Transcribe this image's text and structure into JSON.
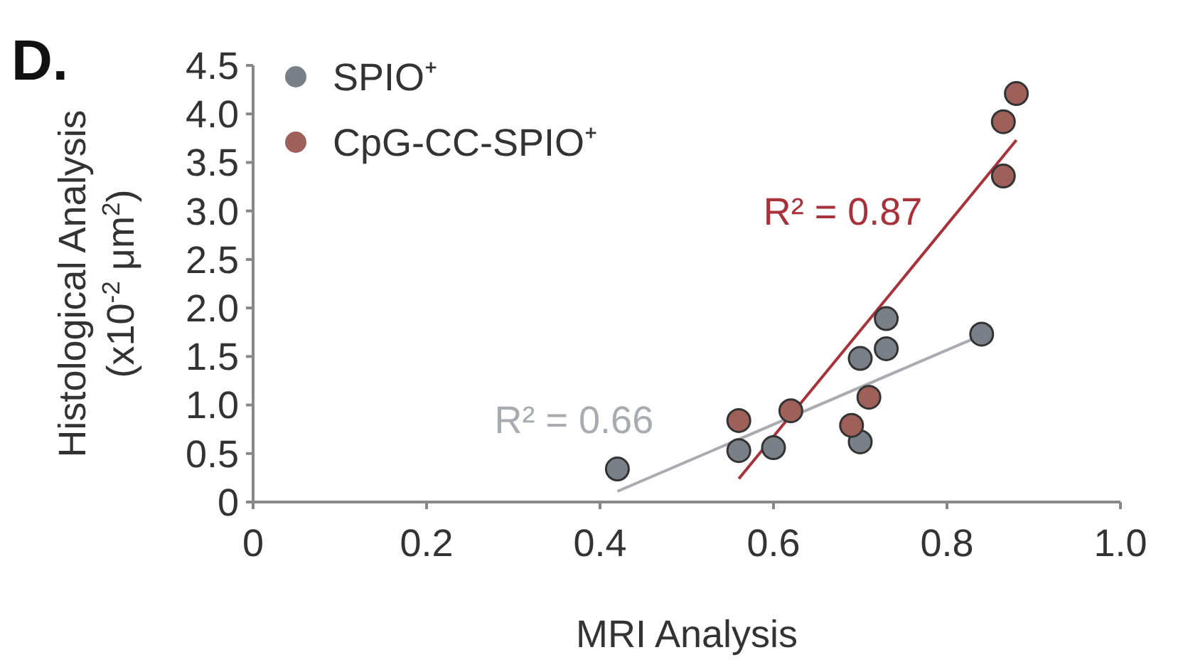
{
  "chart_data": {
    "type": "scatter",
    "title": "D.",
    "xlabel": "MRI Analysis",
    "ylabel": "Histological Analysis\n(x10$^{-2}$ μm$^{2}$)",
    "xlim": [
      0,
      1.0
    ],
    "xticks": [
      0,
      {
        "value": 0.2,
        "label": "0.2"
      },
      {
        "value": 0.4,
        "label": "0.4"
      },
      {
        "value": 0.6,
        "label": "0.6"
      },
      {
        "value": 0.8,
        "label": "0.8"
      },
      {
        "value": 1.0,
        "label": "1.0"
      }
    ],
    "ylim": [
      0,
      4.5
    ],
    "yticks": [
      0,
      {
        "value": 0.5,
        "label": "0.5"
      },
      {
        "value": 1.0,
        "label": "1.0"
      },
      {
        "value": 1.5,
        "label": "1.5"
      },
      {
        "value": 2.0,
        "label": "2.0"
      },
      {
        "value": 2.5,
        "label": "2.5"
      },
      {
        "value": 3.0,
        "label": "3.0"
      },
      {
        "value": 3.5,
        "label": "3.5"
      },
      {
        "value": 4.0,
        "label": "4.0"
      },
      {
        "value": 4.5,
        "label": "4.5"
      }
    ],
    "grid": false,
    "legend": "top left",
    "marker": "circle",
    "series": [
      {
        "name": "SPIO⁺",
        "color": "#7a8088",
        "x": [
          0.42,
          0.56,
          0.6,
          0.7,
          0.7,
          0.73,
          0.73,
          0.84
        ],
        "values": [
          0.34,
          0.53,
          0.56,
          0.62,
          1.48,
          1.58,
          1.89,
          1.73
        ]
      },
      {
        "name": "CpG-CC-SPIO⁺",
        "color": "#a0605a",
        "x": [
          0.56,
          0.62,
          0.69,
          0.71,
          0.865,
          0.865,
          0.88
        ],
        "values": [
          0.84,
          0.94,
          0.79,
          1.08,
          3.36,
          3.92,
          4.21
        ]
      },
      {
        "type": "line",
        "color": "#a8abb0",
        "x": [
          0.42,
          0.84
        ],
        "values": [
          0.11,
          1.72
        ],
        "marker": "none"
      },
      {
        "type": "line",
        "color": "#a8323a",
        "x": [
          0.56,
          0.88
        ],
        "values": [
          0.24,
          3.73
        ],
        "marker": "none"
      }
    ],
    "annotations": [
      "R² = 0.87",
      "R² = 0.66"
    ]
  }
}
